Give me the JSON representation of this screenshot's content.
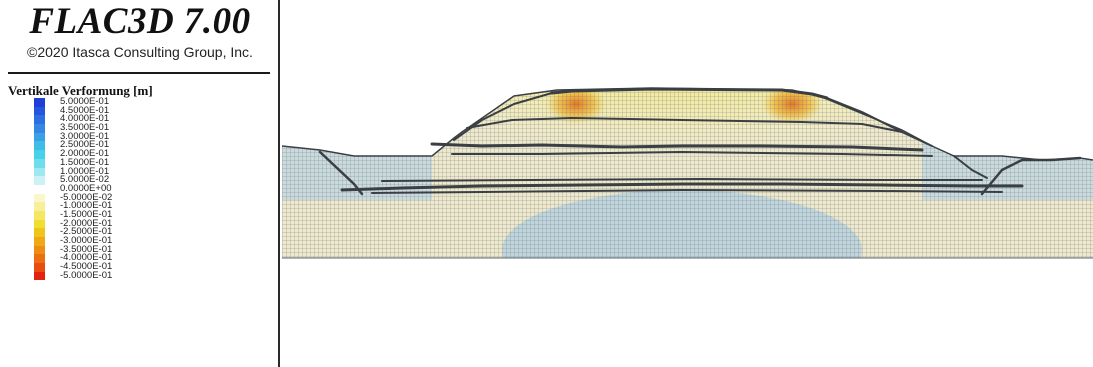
{
  "app": {
    "title": "FLAC3D 7.00",
    "copyright": "©2020 Itasca Consulting Group, Inc."
  },
  "legend": {
    "title": "Vertikale Verformung [m]",
    "items": [
      {
        "label": "5.0000E-01",
        "color": "#1f3fd6"
      },
      {
        "label": "4.5000E-01",
        "color": "#2457de"
      },
      {
        "label": "4.0000E-01",
        "color": "#2d6fe2"
      },
      {
        "label": "3.5000E-01",
        "color": "#3488e4"
      },
      {
        "label": "3.0000E-01",
        "color": "#3aa1e6"
      },
      {
        "label": "2.5000E-01",
        "color": "#3fbde8"
      },
      {
        "label": "2.0000E-01",
        "color": "#48d2ea"
      },
      {
        "label": "1.5000E-01",
        "color": "#6fdeec"
      },
      {
        "label": "1.0000E-01",
        "color": "#9ee8f0"
      },
      {
        "label": "5.0000E-02",
        "color": "#cdf2f6"
      },
      {
        "label": "0.0000E+00",
        "color": "#ffffff"
      },
      {
        "label": "-5.0000E-02",
        "color": "#fbf7cc"
      },
      {
        "label": "-1.0000E-01",
        "color": "#f8ef9a"
      },
      {
        "label": "-1.5000E-01",
        "color": "#f4e766"
      },
      {
        "label": "-2.0000E-01",
        "color": "#f0df30"
      },
      {
        "label": "-2.5000E-01",
        "color": "#f0c41a"
      },
      {
        "label": "-3.0000E-01",
        "color": "#f0a816"
      },
      {
        "label": "-3.5000E-01",
        "color": "#ee8c14"
      },
      {
        "label": "-4.0000E-01",
        "color": "#ec6e12"
      },
      {
        "label": "-4.5000E-01",
        "color": "#e84c10"
      },
      {
        "label": "-5.0000E-01",
        "color": "#e2230e"
      }
    ]
  },
  "colors": {
    "mesh_line": "#5a6570",
    "ground_blue": "#b8d2de",
    "ground_beige": "#eee8cc",
    "subsidence_yellow": "#f0df30",
    "subsidence_orange": "#e7892a",
    "frame": "#2a2a2a"
  }
}
